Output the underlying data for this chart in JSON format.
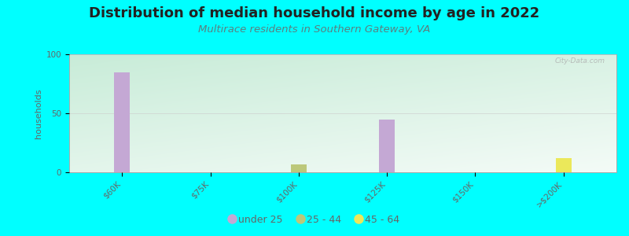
{
  "title": "Distribution of median household income by age in 2022",
  "subtitle": "Multirace residents in Southern Gateway, VA",
  "ylabel": "households",
  "background_color": "#00FFFF",
  "ylim": [
    0,
    100
  ],
  "yticks": [
    0,
    50,
    100
  ],
  "categories": [
    "$60K",
    "$75K",
    "$100K",
    "$125K",
    "$150K",
    ">$200K"
  ],
  "age_groups": [
    "under 25",
    "25 - 44",
    "45 - 64"
  ],
  "colors": {
    "under 25": "#c4a8d4",
    "25 - 44": "#bcc87a",
    "45 - 64": "#ebe85a"
  },
  "data": {
    "under 25": [
      85,
      0,
      0,
      45,
      0,
      0
    ],
    "25 - 44": [
      0,
      0,
      7,
      0,
      0,
      0
    ],
    "45 - 64": [
      0,
      0,
      0,
      0,
      0,
      12
    ]
  },
  "bar_width": 0.18,
  "title_fontsize": 13,
  "subtitle_fontsize": 9.5,
  "axis_label_fontsize": 8,
  "tick_fontsize": 7.5,
  "legend_fontsize": 9,
  "watermark": "City-Data.com",
  "title_color": "#222222",
  "subtitle_color": "#5a8080",
  "ylabel_color": "#666666",
  "tick_color": "#666666",
  "grid_color": "#cccccc",
  "plot_bg_topleft": "#c8ecd8",
  "plot_bg_white": "#ffffff"
}
